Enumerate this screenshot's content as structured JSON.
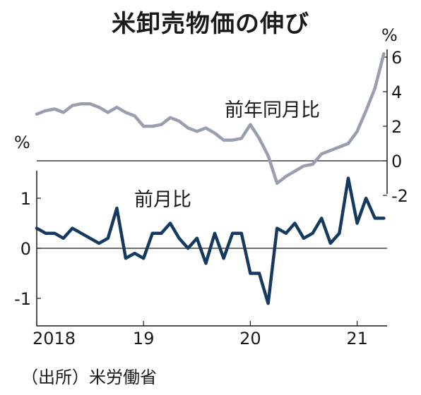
{
  "title": "米卸売物価の伸び",
  "source": "（出所）米労働省",
  "chart_data": [
    {
      "type": "line",
      "name": "前年同月比",
      "unit": "%",
      "axis_side": "right",
      "ylim": [
        -2.5,
        6.5
      ],
      "y_ticks": [
        6,
        4,
        2,
        0,
        -2
      ],
      "x": [
        "2018-01",
        "2018-02",
        "2018-03",
        "2018-04",
        "2018-05",
        "2018-06",
        "2018-07",
        "2018-08",
        "2018-09",
        "2018-10",
        "2018-11",
        "2018-12",
        "2019-01",
        "2019-02",
        "2019-03",
        "2019-04",
        "2019-05",
        "2019-06",
        "2019-07",
        "2019-08",
        "2019-09",
        "2019-10",
        "2019-11",
        "2019-12",
        "2020-01",
        "2020-02",
        "2020-03",
        "2020-04",
        "2020-05",
        "2020-06",
        "2020-07",
        "2020-08",
        "2020-09",
        "2020-10",
        "2020-11",
        "2020-12",
        "2021-01",
        "2021-02",
        "2021-03",
        "2021-04"
      ],
      "values": [
        2.7,
        2.9,
        3.0,
        2.8,
        3.2,
        3.3,
        3.3,
        3.1,
        2.8,
        3.1,
        2.8,
        2.6,
        2.0,
        2.0,
        2.1,
        2.5,
        2.3,
        1.9,
        1.7,
        1.9,
        1.6,
        1.2,
        1.2,
        1.3,
        2.1,
        1.3,
        0.3,
        -1.3,
        -0.9,
        -0.6,
        -0.3,
        -0.2,
        0.4,
        0.6,
        0.8,
        1.0,
        1.7,
        2.9,
        4.2,
        6.2
      ],
      "color": "#9a9fb0"
    },
    {
      "type": "line",
      "name": "前月比",
      "unit": "%",
      "axis_side": "left",
      "ylim": [
        -1.5,
        1.5
      ],
      "y_ticks": [
        1,
        0,
        -1
      ],
      "x": [
        "2018-01",
        "2018-02",
        "2018-03",
        "2018-04",
        "2018-05",
        "2018-06",
        "2018-07",
        "2018-08",
        "2018-09",
        "2018-10",
        "2018-11",
        "2018-12",
        "2019-01",
        "2019-02",
        "2019-03",
        "2019-04",
        "2019-05",
        "2019-06",
        "2019-07",
        "2019-08",
        "2019-09",
        "2019-10",
        "2019-11",
        "2019-12",
        "2020-01",
        "2020-02",
        "2020-03",
        "2020-04",
        "2020-05",
        "2020-06",
        "2020-07",
        "2020-08",
        "2020-09",
        "2020-10",
        "2020-11",
        "2020-12",
        "2021-01",
        "2021-02",
        "2021-03",
        "2021-04"
      ],
      "values": [
        0.4,
        0.3,
        0.3,
        0.2,
        0.4,
        0.3,
        0.2,
        0.1,
        0.2,
        0.8,
        -0.2,
        -0.1,
        -0.2,
        0.3,
        0.3,
        0.5,
        0.2,
        0.0,
        0.2,
        -0.3,
        0.3,
        -0.2,
        0.3,
        0.3,
        -0.5,
        -0.5,
        -1.1,
        0.4,
        0.3,
        0.5,
        0.2,
        0.3,
        0.6,
        0.1,
        0.3,
        1.4,
        0.5,
        1.0,
        0.6,
        0.6
      ],
      "color": "#163a5f"
    }
  ],
  "x_ticks": [
    "2018",
    "19",
    "20",
    "21"
  ]
}
